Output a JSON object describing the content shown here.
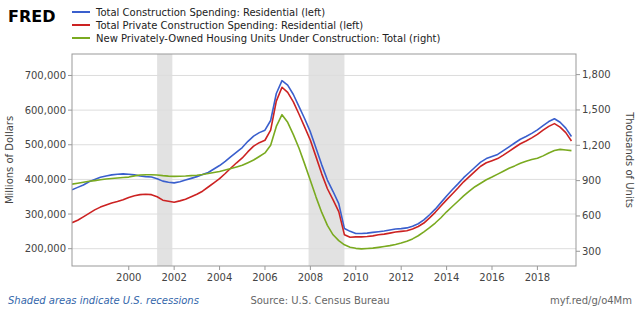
{
  "chart_data": {
    "type": "line",
    "title": "FRED",
    "ylabel": "Millions of Dollars",
    "y2label": "Thousands of Units",
    "annotations": [
      "Shaded areas indicate U.S. recessions",
      "Source: U.S. Census Bureau",
      "myf.red/g/o4Mm"
    ],
    "legend": "upper left",
    "grid": true,
    "xlim": [
      1997.5,
      2019.7
    ],
    "xticks": [
      2000,
      2002,
      2004,
      2006,
      2008,
      2010,
      2012,
      2014,
      2016,
      2018
    ],
    "ylim": [
      150000,
      762000
    ],
    "yticks": [
      {
        "value": 200000,
        "label": "200,000"
      },
      {
        "value": 300000,
        "label": "300,000"
      },
      {
        "value": 400000,
        "label": "400,000"
      },
      {
        "value": 500000,
        "label": "500,000"
      },
      {
        "value": 600000,
        "label": "600,000"
      },
      {
        "value": 700000,
        "label": "700,000"
      }
    ],
    "y2lim": [
      175,
      1975
    ],
    "y2ticks": [
      300,
      600,
      900,
      {
        "value": 1200,
        "label": "1,200"
      },
      {
        "value": 1500,
        "label": "1,500"
      },
      {
        "value": 1800,
        "label": "1,800"
      }
    ],
    "bands": [
      [
        2001.25,
        2001.92
      ],
      [
        2007.92,
        2009.5
      ]
    ],
    "x": [
      1997.5,
      1997.75,
      1998.0,
      1998.25,
      1998.5,
      1998.75,
      1999.0,
      1999.25,
      1999.5,
      1999.75,
      2000.0,
      2000.25,
      2000.5,
      2000.75,
      2001.0,
      2001.25,
      2001.5,
      2001.75,
      2002.0,
      2002.25,
      2002.5,
      2002.75,
      2003.0,
      2003.25,
      2003.5,
      2003.75,
      2004.0,
      2004.25,
      2004.5,
      2004.75,
      2005.0,
      2005.25,
      2005.5,
      2005.75,
      2006.0,
      2006.25,
      2006.5,
      2006.75,
      2007.0,
      2007.25,
      2007.5,
      2007.75,
      2008.0,
      2008.25,
      2008.5,
      2008.75,
      2009.0,
      2009.25,
      2009.5,
      2009.75,
      2010.0,
      2010.25,
      2010.5,
      2010.75,
      2011.0,
      2011.25,
      2011.5,
      2011.75,
      2012.0,
      2012.25,
      2012.5,
      2012.75,
      2013.0,
      2013.25,
      2013.5,
      2013.75,
      2014.0,
      2014.25,
      2014.5,
      2014.75,
      2015.0,
      2015.25,
      2015.5,
      2015.75,
      2016.0,
      2016.25,
      2016.5,
      2016.75,
      2017.0,
      2017.25,
      2017.5,
      2017.75,
      2018.0,
      2018.25,
      2018.5,
      2018.75,
      2019.0,
      2019.25,
      2019.5
    ],
    "series": [
      {
        "name": "Total Construction Spending: Residential (left)",
        "color": "#3a5fcd",
        "values": [
          370000,
          377000,
          384000,
          393000,
          400000,
          406000,
          410000,
          413000,
          415000,
          416000,
          415000,
          413000,
          410000,
          408000,
          407000,
          402000,
          395000,
          392000,
          390000,
          393000,
          398000,
          403000,
          408000,
          414000,
          420000,
          430000,
          440000,
          452000,
          466000,
          479000,
          492000,
          510000,
          525000,
          535000,
          542000,
          570000,
          648000,
          685000,
          672000,
          645000,
          610000,
          575000,
          537000,
          490000,
          442000,
          398000,
          365000,
          330000,
          258000,
          250000,
          244000,
          244000,
          245000,
          247000,
          249000,
          251000,
          254000,
          257000,
          258000,
          260000,
          265000,
          272000,
          283000,
          298000,
          314000,
          333000,
          352000,
          370000,
          387000,
          405000,
          420000,
          435000,
          450000,
          460000,
          466000,
          472000,
          483000,
          494000,
          505000,
          516000,
          524000,
          533000,
          543000,
          555000,
          567000,
          575000,
          565000,
          548000,
          524000
        ]
      },
      {
        "name": "Total Private Construction Spending: Residential (left)",
        "color": "#cc2222",
        "values": [
          275000,
          282000,
          292000,
          302000,
          312000,
          320000,
          326000,
          332000,
          336000,
          341000,
          348000,
          353000,
          356000,
          357000,
          356000,
          350000,
          340000,
          337000,
          334000,
          338000,
          343000,
          350000,
          357000,
          366000,
          378000,
          390000,
          402000,
          417000,
          433000,
          448000,
          462000,
          480000,
          496000,
          506000,
          513000,
          542000,
          626000,
          666000,
          651000,
          624000,
          588000,
          551000,
          513000,
          465000,
          416000,
          373000,
          341000,
          307000,
          240000,
          233000,
          234000,
          234000,
          235000,
          237000,
          240000,
          242000,
          245000,
          248000,
          250000,
          252000,
          257000,
          264000,
          274000,
          289000,
          305000,
          323000,
          341000,
          358000,
          375000,
          393000,
          408000,
          423000,
          438000,
          448000,
          454000,
          460000,
          470000,
          481000,
          492000,
          503000,
          511000,
          520000,
          530000,
          542000,
          553000,
          561000,
          551000,
          535000,
          511000
        ]
      },
      {
        "name": "New Privately-Owned Housing Units Under Construction: Total (right)",
        "color": "#7aaa20",
        "axis": "y2",
        "values": [
          870,
          878,
          886,
          894,
          900,
          907,
          913,
          918,
          922,
          926,
          930,
          940,
          948,
          950,
          950,
          948,
          942,
          938,
          936,
          937,
          939,
          942,
          946,
          952,
          960,
          969,
          978,
          990,
          1003,
          1016,
          1030,
          1052,
          1075,
          1105,
          1135,
          1200,
          1360,
          1460,
          1395,
          1290,
          1175,
          1040,
          900,
          760,
          630,
          520,
          440,
          390,
          355,
          335,
          325,
          320,
          323,
          327,
          333,
          340,
          348,
          358,
          370,
          385,
          405,
          432,
          465,
          500,
          540,
          585,
          635,
          680,
          725,
          770,
          810,
          848,
          878,
          907,
          930,
          955,
          980,
          1005,
          1025,
          1048,
          1065,
          1080,
          1090,
          1110,
          1135,
          1155,
          1165,
          1160,
          1155
        ]
      }
    ]
  }
}
